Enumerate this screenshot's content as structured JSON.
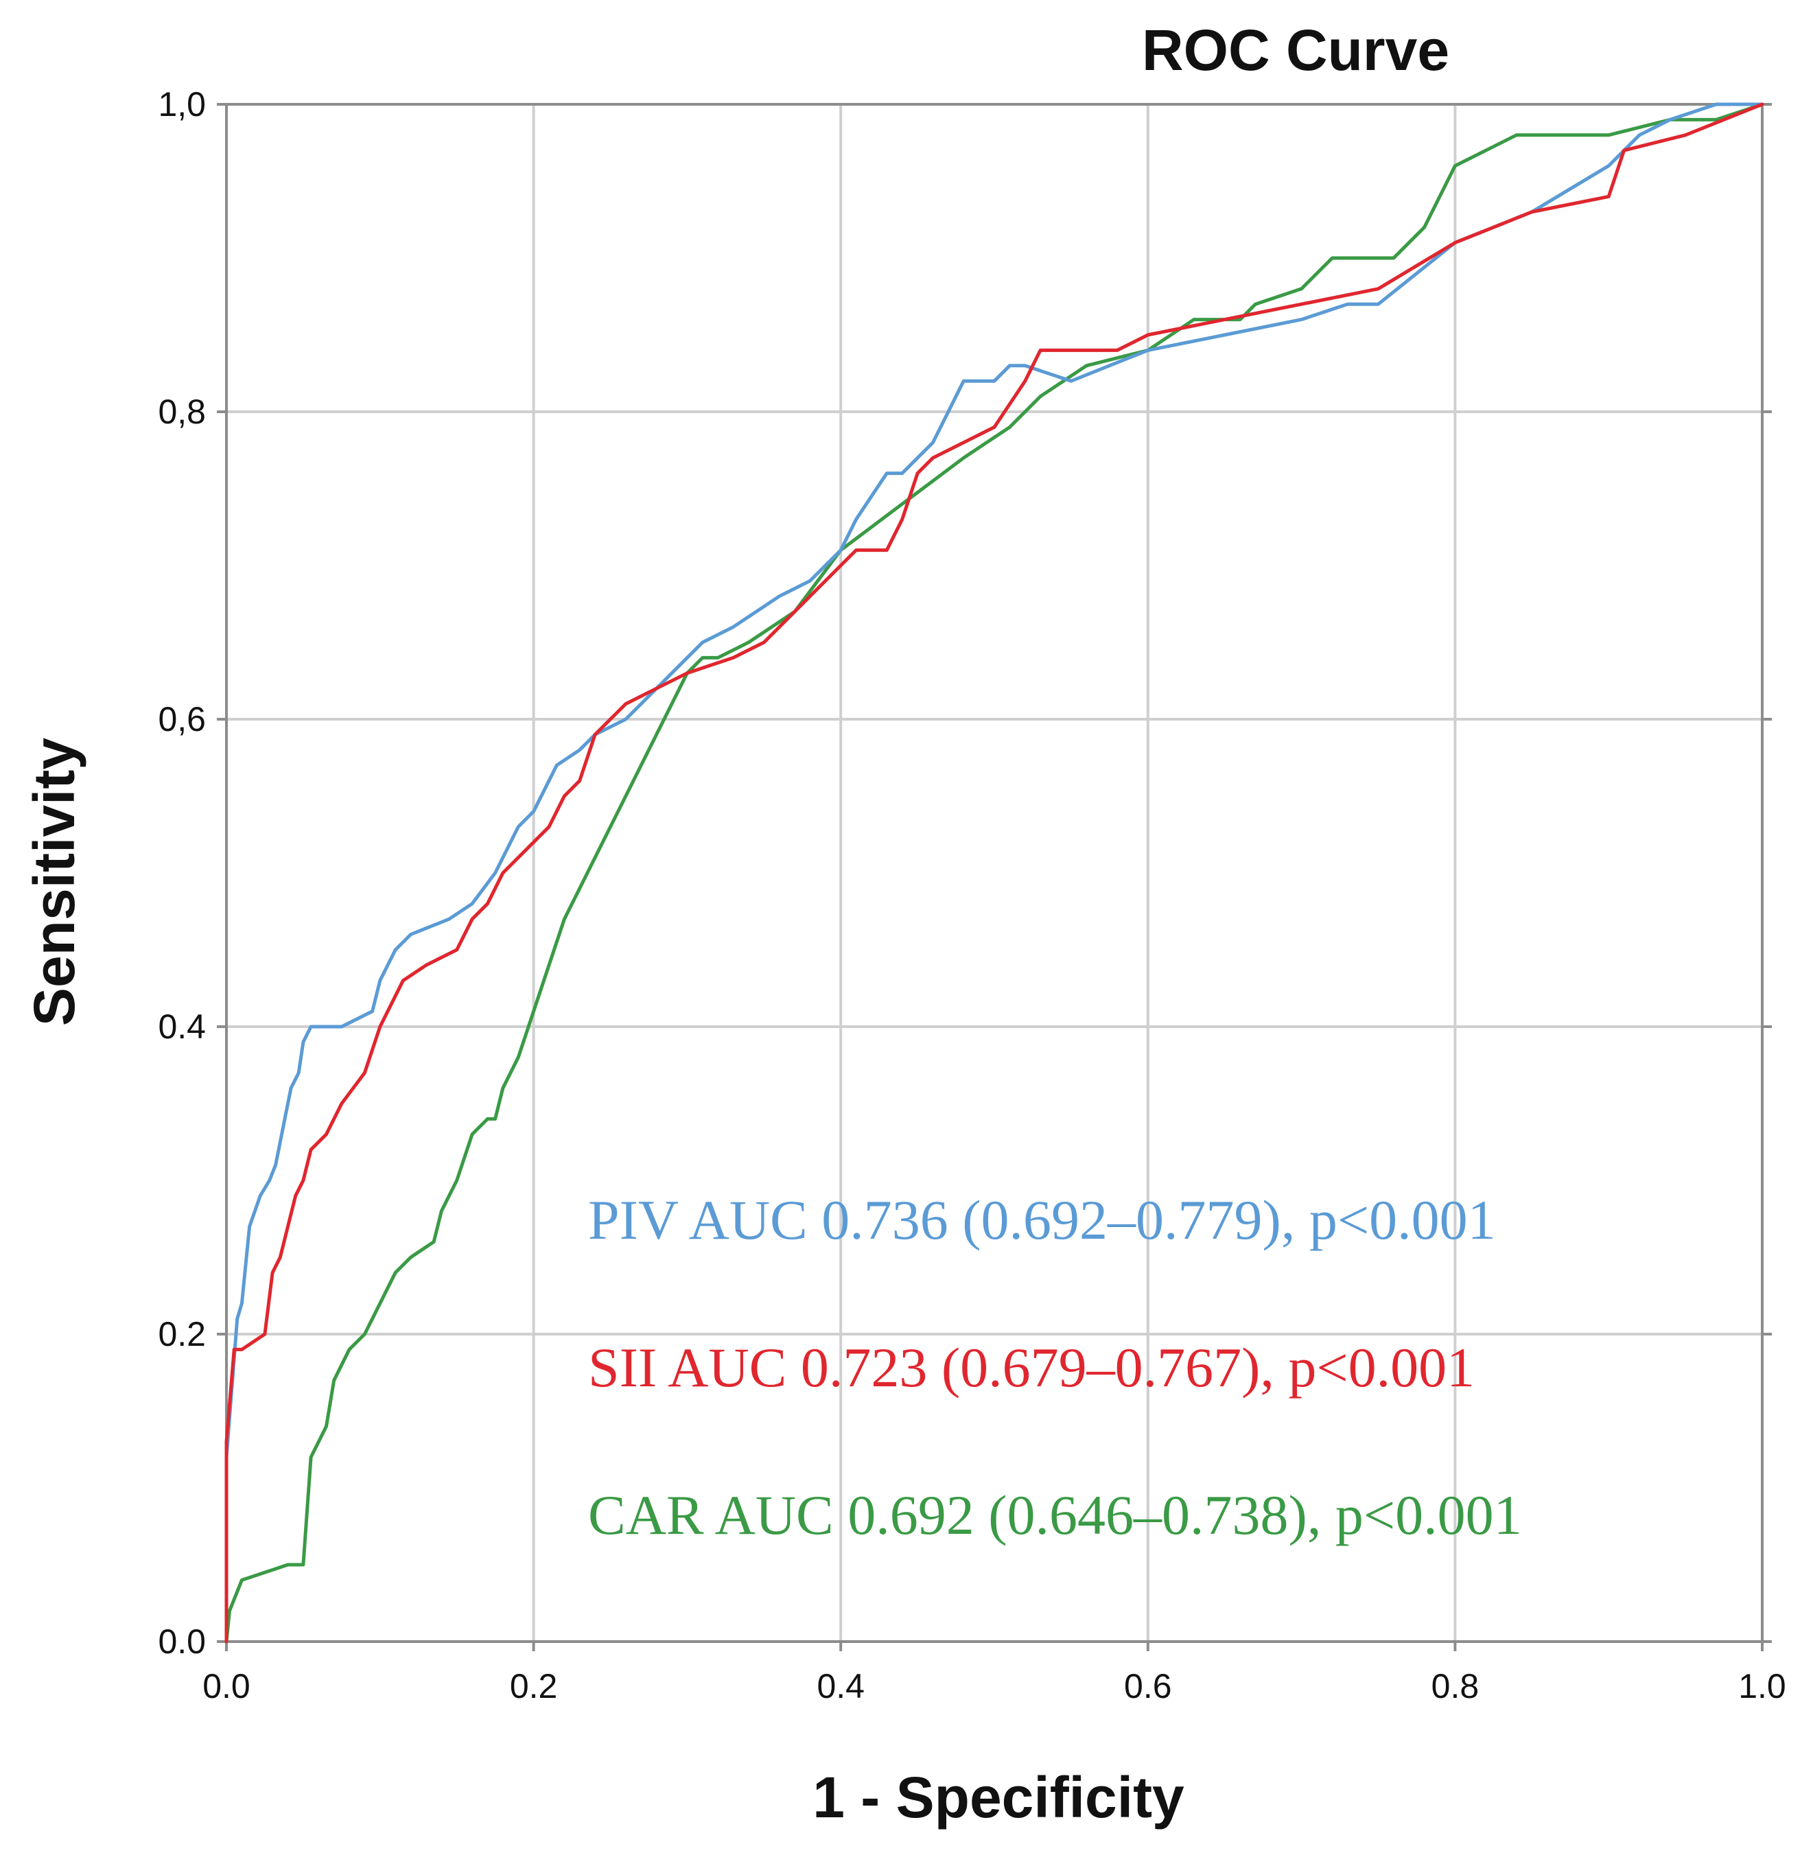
{
  "chart_data": {
    "type": "line",
    "title": "ROC Curve",
    "xlabel": "1 - Specificity",
    "ylabel": "Sensitivity",
    "xlim": [
      0,
      1
    ],
    "ylim": [
      0,
      1
    ],
    "grid": true,
    "x_ticks": [
      "0.0",
      "0.2",
      "0.4",
      "0.6",
      "0.8",
      "1.0"
    ],
    "y_ticks": [
      "0.0",
      "0.2",
      "0.4",
      "0,6",
      "0,8",
      "1,0"
    ],
    "annotations": [
      {
        "text": "PIV AUC 0.736 (0.692–0.779),  p<0.001",
        "color": "#5b9bd5"
      },
      {
        "text": "SII AUC 0.723 (0.679–0.767), p<0.001",
        "color": "#e0262e"
      },
      {
        "text": "CAR AUC 0.692 (0.646–0.738), p<0.001",
        "color": "#3a9a45"
      }
    ],
    "series": [
      {
        "color": "#5b9bd5",
        "x": [
          0.0,
          0.0,
          0.007,
          0.01,
          0.015,
          0.022,
          0.028,
          0.032,
          0.038,
          0.042,
          0.047,
          0.05,
          0.055,
          0.075,
          0.095,
          0.1,
          0.11,
          0.12,
          0.145,
          0.16,
          0.175,
          0.185,
          0.19,
          0.2,
          0.215,
          0.23,
          0.24,
          0.26,
          0.29,
          0.31,
          0.33,
          0.36,
          0.38,
          0.39,
          0.4,
          0.41,
          0.43,
          0.44,
          0.46,
          0.47,
          0.48,
          0.5,
          0.51,
          0.52,
          0.55,
          0.6,
          0.65,
          0.7,
          0.73,
          0.75,
          0.8,
          0.85,
          0.9,
          0.92,
          0.94,
          0.97,
          1.0
        ],
        "y": [
          0.0,
          0.12,
          0.21,
          0.22,
          0.27,
          0.29,
          0.3,
          0.31,
          0.34,
          0.36,
          0.37,
          0.39,
          0.4,
          0.4,
          0.41,
          0.43,
          0.45,
          0.46,
          0.47,
          0.48,
          0.5,
          0.52,
          0.53,
          0.54,
          0.57,
          0.58,
          0.59,
          0.6,
          0.63,
          0.65,
          0.66,
          0.68,
          0.69,
          0.7,
          0.71,
          0.73,
          0.76,
          0.76,
          0.78,
          0.8,
          0.82,
          0.82,
          0.83,
          0.83,
          0.82,
          0.84,
          0.85,
          0.86,
          0.87,
          0.87,
          0.91,
          0.93,
          0.96,
          0.98,
          0.99,
          1.0,
          1.0
        ]
      },
      {
        "color": "#e0262e",
        "x": [
          0.0,
          0.0,
          0.005,
          0.01,
          0.025,
          0.03,
          0.035,
          0.04,
          0.045,
          0.05,
          0.055,
          0.065,
          0.075,
          0.09,
          0.1,
          0.105,
          0.115,
          0.13,
          0.15,
          0.16,
          0.17,
          0.18,
          0.19,
          0.2,
          0.21,
          0.22,
          0.23,
          0.24,
          0.26,
          0.28,
          0.3,
          0.33,
          0.35,
          0.37,
          0.39,
          0.4,
          0.41,
          0.43,
          0.44,
          0.45,
          0.46,
          0.48,
          0.5,
          0.52,
          0.53,
          0.55,
          0.58,
          0.6,
          0.65,
          0.7,
          0.75,
          0.8,
          0.85,
          0.9,
          0.91,
          0.95,
          1.0
        ],
        "y": [
          0.0,
          0.13,
          0.19,
          0.19,
          0.2,
          0.24,
          0.25,
          0.27,
          0.29,
          0.3,
          0.32,
          0.33,
          0.35,
          0.37,
          0.4,
          0.41,
          0.43,
          0.44,
          0.45,
          0.47,
          0.48,
          0.5,
          0.51,
          0.52,
          0.53,
          0.55,
          0.56,
          0.59,
          0.61,
          0.62,
          0.63,
          0.64,
          0.65,
          0.67,
          0.69,
          0.7,
          0.71,
          0.71,
          0.73,
          0.76,
          0.77,
          0.78,
          0.79,
          0.82,
          0.84,
          0.84,
          0.84,
          0.85,
          0.86,
          0.87,
          0.88,
          0.91,
          0.93,
          0.94,
          0.97,
          0.98,
          1.0
        ]
      },
      {
        "color": "#3a9a45",
        "x": [
          0.0,
          0.002,
          0.01,
          0.04,
          0.05,
          0.055,
          0.065,
          0.07,
          0.08,
          0.09,
          0.1,
          0.11,
          0.12,
          0.135,
          0.14,
          0.15,
          0.16,
          0.17,
          0.175,
          0.18,
          0.19,
          0.2,
          0.22,
          0.25,
          0.28,
          0.3,
          0.31,
          0.32,
          0.34,
          0.37,
          0.4,
          0.44,
          0.48,
          0.51,
          0.53,
          0.56,
          0.6,
          0.63,
          0.66,
          0.67,
          0.7,
          0.72,
          0.76,
          0.78,
          0.8,
          0.82,
          0.84,
          0.86,
          0.9,
          0.94,
          0.97,
          1.0
        ],
        "y": [
          0.0,
          0.02,
          0.04,
          0.05,
          0.05,
          0.12,
          0.14,
          0.17,
          0.19,
          0.2,
          0.22,
          0.24,
          0.25,
          0.26,
          0.28,
          0.3,
          0.33,
          0.34,
          0.34,
          0.36,
          0.38,
          0.41,
          0.47,
          0.53,
          0.59,
          0.63,
          0.64,
          0.64,
          0.65,
          0.67,
          0.71,
          0.74,
          0.77,
          0.79,
          0.81,
          0.83,
          0.84,
          0.86,
          0.86,
          0.87,
          0.88,
          0.9,
          0.9,
          0.92,
          0.96,
          0.97,
          0.98,
          0.98,
          0.98,
          0.99,
          0.99,
          1.0
        ]
      }
    ]
  }
}
